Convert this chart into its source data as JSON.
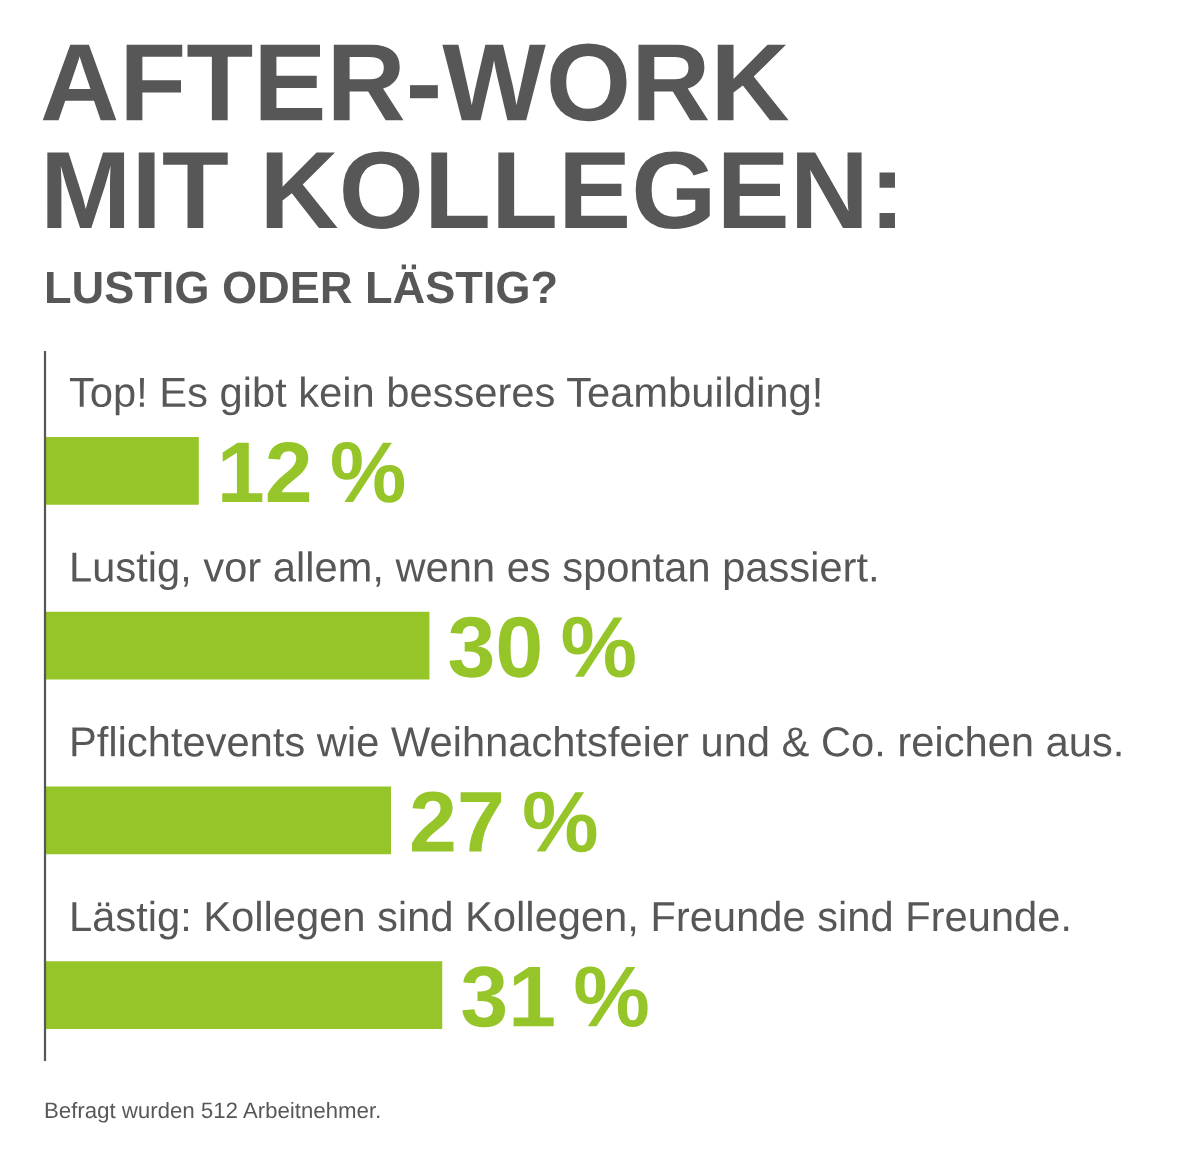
{
  "chart_data": {
    "type": "bar",
    "orientation": "horizontal",
    "title": "AFTER-WORK\nMIT KOLLEGEN:",
    "subtitle": "LUSTIG ODER LÄSTIG?",
    "categories": [
      "Top! Es gibt kein besseres Teambuilding!",
      "Lustig, vor allem, wenn es spontan passiert.",
      "Pflichtevents wie Weihnachtsfeier und & Co. reichen aus.",
      "Lästig: Kollegen sind Kollegen, Freunde sind Freunde."
    ],
    "values": [
      12,
      30,
      27,
      31
    ],
    "value_labels": [
      "12 %",
      "30 %",
      "27 %",
      "31 %"
    ],
    "color": "#95c528",
    "tick_labels": false,
    "annotations": [
      "Befragt wurden 512 Arbeitnehmer."
    ]
  }
}
